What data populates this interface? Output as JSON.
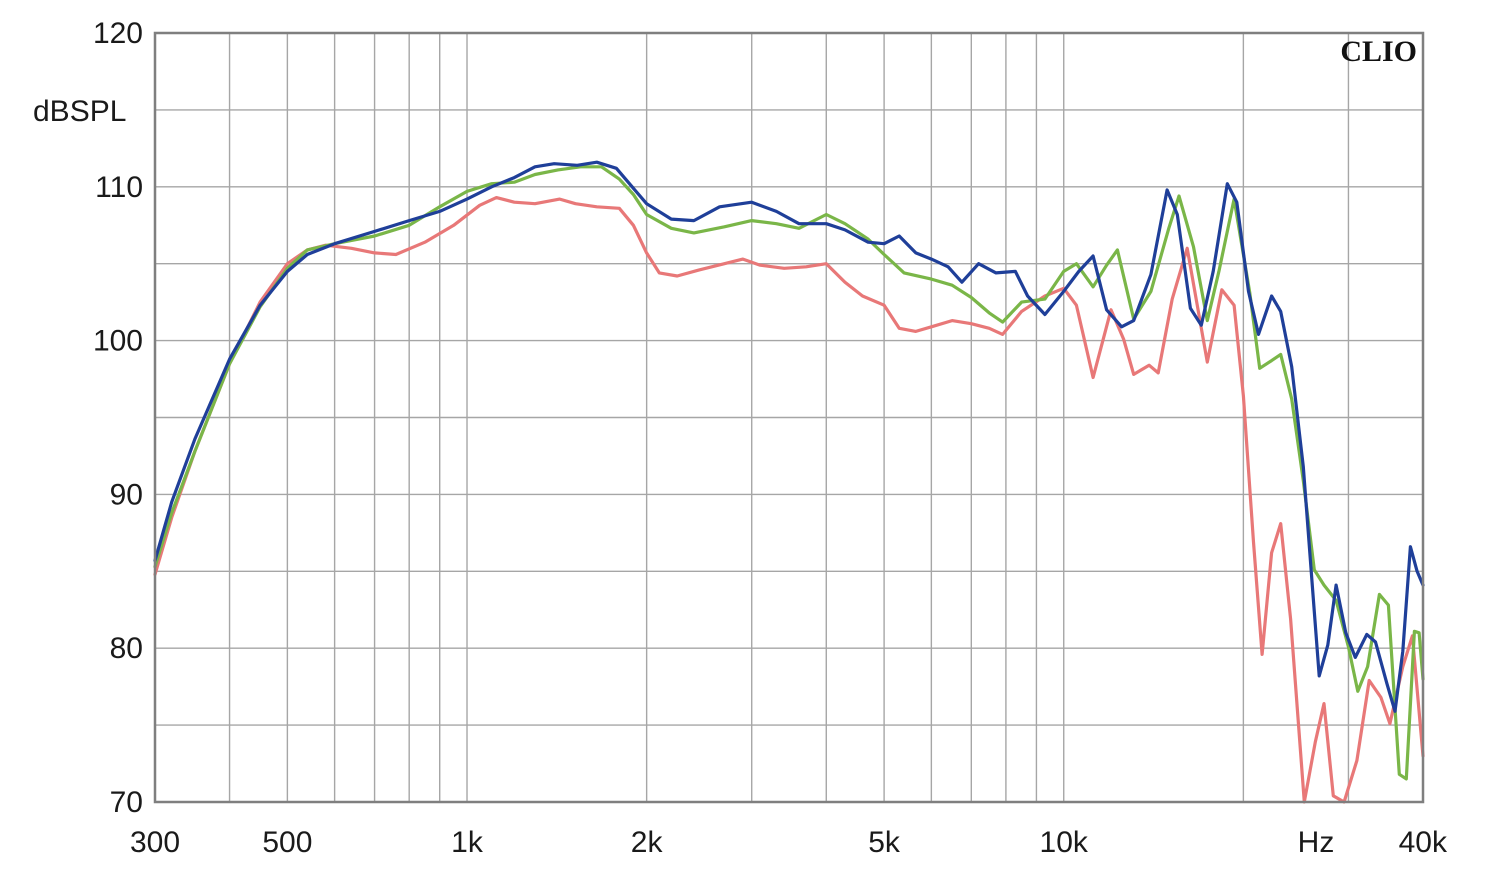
{
  "chart_data": {
    "type": "line",
    "brand": "CLIO",
    "y_unit": "dBSPL",
    "x_unit": "Hz",
    "x_scale": "log",
    "xlim": [
      300,
      40000
    ],
    "ylim": [
      70,
      120
    ],
    "grid": true,
    "x_tick_labels": [
      {
        "value": 300,
        "label": "300"
      },
      {
        "value": 500,
        "label": "500"
      },
      {
        "value": 1000,
        "label": "1k"
      },
      {
        "value": 2000,
        "label": "2k"
      },
      {
        "value": 5000,
        "label": "5k"
      },
      {
        "value": 10000,
        "label": "10k"
      },
      {
        "value": 40000,
        "label": "40k"
      }
    ],
    "y_tick_labels": [
      {
        "value": 120,
        "label": "120"
      },
      {
        "value": 110,
        "label": "110"
      },
      {
        "value": 100,
        "label": "100"
      },
      {
        "value": 90,
        "label": "90"
      },
      {
        "value": 80,
        "label": "80"
      },
      {
        "value": 70,
        "label": "70"
      }
    ],
    "x_grid": [
      300,
      400,
      500,
      600,
      700,
      800,
      900,
      1000,
      2000,
      3000,
      4000,
      5000,
      6000,
      7000,
      8000,
      9000,
      10000,
      20000,
      30000,
      40000
    ],
    "y_grid": [
      70,
      75,
      80,
      85,
      90,
      95,
      100,
      105,
      110,
      115,
      120
    ],
    "series": [
      {
        "color": "#e87878",
        "points": [
          [
            300,
            84.8
          ],
          [
            320,
            88.5
          ],
          [
            350,
            92.8
          ],
          [
            400,
            98.5
          ],
          [
            450,
            102.5
          ],
          [
            500,
            105.0
          ],
          [
            540,
            105.9
          ],
          [
            580,
            106.2
          ],
          [
            640,
            106.0
          ],
          [
            700,
            105.7
          ],
          [
            760,
            105.6
          ],
          [
            850,
            106.4
          ],
          [
            950,
            107.5
          ],
          [
            1050,
            108.8
          ],
          [
            1120,
            109.3
          ],
          [
            1200,
            109.0
          ],
          [
            1300,
            108.9
          ],
          [
            1430,
            109.2
          ],
          [
            1520,
            108.9
          ],
          [
            1650,
            108.7
          ],
          [
            1800,
            108.6
          ],
          [
            1900,
            107.5
          ],
          [
            2000,
            105.7
          ],
          [
            2100,
            104.4
          ],
          [
            2250,
            104.2
          ],
          [
            2450,
            104.6
          ],
          [
            2700,
            105.0
          ],
          [
            2900,
            105.3
          ],
          [
            3100,
            104.9
          ],
          [
            3400,
            104.7
          ],
          [
            3700,
            104.8
          ],
          [
            4000,
            105.0
          ],
          [
            4300,
            103.8
          ],
          [
            4600,
            102.9
          ],
          [
            5000,
            102.3
          ],
          [
            5300,
            100.8
          ],
          [
            5650,
            100.6
          ],
          [
            6000,
            100.9
          ],
          [
            6500,
            101.3
          ],
          [
            7000,
            101.1
          ],
          [
            7500,
            100.8
          ],
          [
            7900,
            100.4
          ],
          [
            8500,
            101.9
          ],
          [
            9300,
            102.9
          ],
          [
            10000,
            103.4
          ],
          [
            10500,
            102.3
          ],
          [
            11200,
            97.6
          ],
          [
            12000,
            102.0
          ],
          [
            12600,
            100.1
          ],
          [
            13100,
            97.8
          ],
          [
            13900,
            98.4
          ],
          [
            14400,
            97.9
          ],
          [
            15200,
            102.7
          ],
          [
            16100,
            106.0
          ],
          [
            17400,
            98.6
          ],
          [
            18400,
            103.3
          ],
          [
            19300,
            102.3
          ],
          [
            20000,
            96.4
          ],
          [
            20800,
            86.9
          ],
          [
            21500,
            79.6
          ],
          [
            22300,
            86.2
          ],
          [
            23100,
            88.1
          ],
          [
            24000,
            81.9
          ],
          [
            25300,
            69.5
          ],
          [
            26400,
            73.9
          ],
          [
            27300,
            76.4
          ],
          [
            28300,
            70.4
          ],
          [
            29500,
            69.5
          ],
          [
            31000,
            72.7
          ],
          [
            32500,
            77.9
          ],
          [
            34000,
            76.8
          ],
          [
            35200,
            75.1
          ],
          [
            37000,
            78.8
          ],
          [
            38400,
            80.8
          ],
          [
            40000,
            73.0
          ]
        ]
      },
      {
        "color": "#7ab648",
        "points": [
          [
            300,
            85.3
          ],
          [
            320,
            88.8
          ],
          [
            350,
            92.8
          ],
          [
            400,
            98.5
          ],
          [
            450,
            102.2
          ],
          [
            500,
            104.7
          ],
          [
            540,
            105.9
          ],
          [
            600,
            106.3
          ],
          [
            700,
            106.8
          ],
          [
            800,
            107.5
          ],
          [
            900,
            108.7
          ],
          [
            1000,
            109.7
          ],
          [
            1100,
            110.2
          ],
          [
            1200,
            110.3
          ],
          [
            1300,
            110.8
          ],
          [
            1420,
            111.1
          ],
          [
            1550,
            111.3
          ],
          [
            1680,
            111.3
          ],
          [
            1800,
            110.5
          ],
          [
            1900,
            109.5
          ],
          [
            2000,
            108.2
          ],
          [
            2200,
            107.3
          ],
          [
            2400,
            107.0
          ],
          [
            2700,
            107.4
          ],
          [
            3000,
            107.8
          ],
          [
            3300,
            107.6
          ],
          [
            3600,
            107.3
          ],
          [
            4000,
            108.2
          ],
          [
            4300,
            107.6
          ],
          [
            4700,
            106.6
          ],
          [
            5000,
            105.6
          ],
          [
            5400,
            104.4
          ],
          [
            6000,
            104.0
          ],
          [
            6500,
            103.6
          ],
          [
            7000,
            102.8
          ],
          [
            7500,
            101.8
          ],
          [
            7900,
            101.2
          ],
          [
            8500,
            102.5
          ],
          [
            9300,
            102.7
          ],
          [
            10000,
            104.5
          ],
          [
            10500,
            105.0
          ],
          [
            11200,
            103.5
          ],
          [
            11800,
            104.9
          ],
          [
            12300,
            105.9
          ],
          [
            13100,
            101.4
          ],
          [
            14000,
            103.2
          ],
          [
            15000,
            107.3
          ],
          [
            15600,
            109.4
          ],
          [
            16500,
            106.1
          ],
          [
            17400,
            101.3
          ],
          [
            18200,
            104.5
          ],
          [
            19300,
            109.2
          ],
          [
            20500,
            103.1
          ],
          [
            21300,
            98.2
          ],
          [
            22300,
            98.7
          ],
          [
            23100,
            99.1
          ],
          [
            24100,
            96.2
          ],
          [
            25200,
            90.9
          ],
          [
            26300,
            85.1
          ],
          [
            27300,
            84.1
          ],
          [
            28600,
            83.1
          ],
          [
            30000,
            80.1
          ],
          [
            31100,
            77.2
          ],
          [
            32300,
            78.8
          ],
          [
            33800,
            83.5
          ],
          [
            35000,
            82.8
          ],
          [
            36500,
            71.8
          ],
          [
            37500,
            71.5
          ],
          [
            38700,
            81.1
          ],
          [
            39400,
            81.0
          ],
          [
            40000,
            78.0
          ]
        ]
      },
      {
        "color": "#1f3f99",
        "points": [
          [
            300,
            85.7
          ],
          [
            320,
            89.5
          ],
          [
            350,
            93.6
          ],
          [
            400,
            98.8
          ],
          [
            450,
            102.3
          ],
          [
            500,
            104.5
          ],
          [
            540,
            105.6
          ],
          [
            600,
            106.3
          ],
          [
            700,
            107.1
          ],
          [
            800,
            107.8
          ],
          [
            900,
            108.4
          ],
          [
            1000,
            109.2
          ],
          [
            1100,
            110.0
          ],
          [
            1200,
            110.6
          ],
          [
            1300,
            111.3
          ],
          [
            1400,
            111.5
          ],
          [
            1530,
            111.4
          ],
          [
            1650,
            111.6
          ],
          [
            1780,
            111.2
          ],
          [
            1900,
            109.9
          ],
          [
            2000,
            108.9
          ],
          [
            2200,
            107.9
          ],
          [
            2400,
            107.8
          ],
          [
            2650,
            108.7
          ],
          [
            3000,
            109.0
          ],
          [
            3300,
            108.4
          ],
          [
            3600,
            107.6
          ],
          [
            4000,
            107.6
          ],
          [
            4300,
            107.2
          ],
          [
            4700,
            106.4
          ],
          [
            5000,
            106.3
          ],
          [
            5300,
            106.8
          ],
          [
            5650,
            105.7
          ],
          [
            6000,
            105.3
          ],
          [
            6400,
            104.8
          ],
          [
            6750,
            103.8
          ],
          [
            7200,
            105.0
          ],
          [
            7700,
            104.4
          ],
          [
            8300,
            104.5
          ],
          [
            8700,
            102.9
          ],
          [
            9300,
            101.7
          ],
          [
            10000,
            103.2
          ],
          [
            10600,
            104.5
          ],
          [
            11200,
            105.5
          ],
          [
            11800,
            102.0
          ],
          [
            12500,
            100.9
          ],
          [
            13100,
            101.3
          ],
          [
            14000,
            104.3
          ],
          [
            14900,
            109.8
          ],
          [
            15500,
            108.2
          ],
          [
            16300,
            102.1
          ],
          [
            17000,
            101.0
          ],
          [
            17800,
            104.5
          ],
          [
            18800,
            110.2
          ],
          [
            19500,
            109.0
          ],
          [
            20400,
            103.2
          ],
          [
            21200,
            100.4
          ],
          [
            22300,
            102.9
          ],
          [
            23100,
            101.9
          ],
          [
            24100,
            98.3
          ],
          [
            25200,
            91.8
          ],
          [
            26100,
            84.0
          ],
          [
            26800,
            78.2
          ],
          [
            27700,
            80.2
          ],
          [
            28600,
            84.1
          ],
          [
            29700,
            81.0
          ],
          [
            30800,
            79.4
          ],
          [
            32200,
            80.9
          ],
          [
            33300,
            80.4
          ],
          [
            34800,
            77.7
          ],
          [
            35900,
            75.9
          ],
          [
            37000,
            79.8
          ],
          [
            38100,
            86.6
          ],
          [
            39100,
            85.0
          ],
          [
            40000,
            84.1
          ]
        ]
      }
    ]
  }
}
